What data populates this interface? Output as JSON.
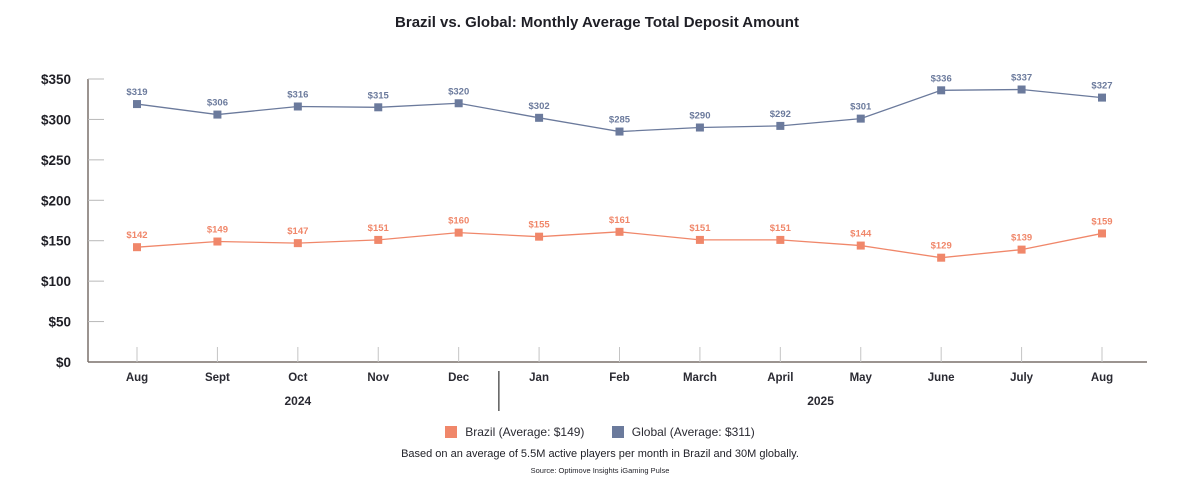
{
  "chart_data": {
    "type": "line",
    "title": "Brazil vs. Global: Monthly Average Total Deposit Amount",
    "xlabel": "",
    "ylabel": "",
    "categories": [
      "Aug",
      "Sept",
      "Oct",
      "Nov",
      "Dec",
      "Jan",
      "Feb",
      "March",
      "April",
      "May",
      "June",
      "July",
      "Aug"
    ],
    "year_groups": [
      {
        "label": "2024",
        "months": [
          "Aug",
          "Sept",
          "Oct",
          "Nov",
          "Dec"
        ]
      },
      {
        "label": "2025",
        "months": [
          "Jan",
          "Feb",
          "March",
          "April",
          "May",
          "June",
          "July",
          "Aug"
        ]
      }
    ],
    "ylim": [
      0,
      350
    ],
    "yticks": [
      0,
      50,
      100,
      150,
      200,
      250,
      300,
      350
    ],
    "ytick_labels": [
      "$0",
      "$50",
      "$100",
      "$150",
      "$200",
      "$250",
      "$300",
      "$350"
    ],
    "grid": false,
    "legend_position": "bottom",
    "series": [
      {
        "name": "Brazil",
        "legend_label": "Brazil (Average: $149)",
        "color": "#f0876a",
        "marker": "square",
        "values": [
          142,
          149,
          147,
          151,
          160,
          155,
          161,
          151,
          151,
          144,
          129,
          139,
          159
        ],
        "labels": [
          "$142",
          "$149",
          "$147",
          "$151",
          "$160",
          "$155",
          "$161",
          "$151",
          "$151",
          "$144",
          "$129",
          "$139",
          "$159"
        ]
      },
      {
        "name": "Global",
        "legend_label": "Global (Average: $311)",
        "color": "#6b7a9c",
        "marker": "square",
        "values": [
          319,
          306,
          316,
          315,
          320,
          302,
          285,
          290,
          292,
          301,
          336,
          337,
          327
        ],
        "labels": [
          "$319",
          "$306",
          "$316",
          "$315",
          "$320",
          "$302",
          "$285",
          "$290",
          "$292",
          "$301",
          "$336",
          "$337",
          "$327"
        ]
      }
    ]
  },
  "footnote": "Based on an average of 5.5M active players per month in Brazil and 30M globally.",
  "source": "Source: Optimove Insights iGaming Pulse"
}
